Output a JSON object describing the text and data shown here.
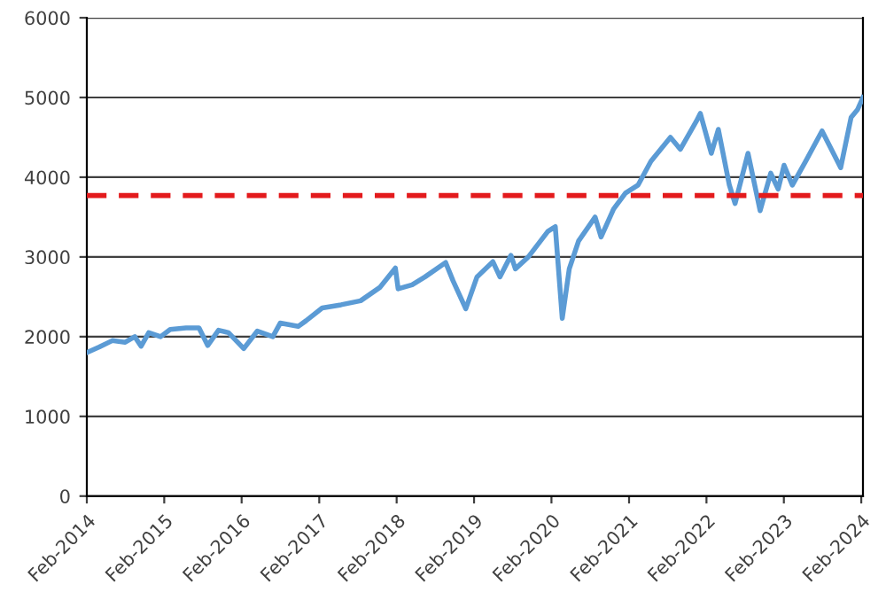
{
  "chart_data": {
    "type": "line",
    "x": [
      "2014-02-01",
      "2014-04-01",
      "2014-06-01",
      "2014-08-01",
      "2014-09-15",
      "2014-10-15",
      "2014-11-20",
      "2015-01-15",
      "2015-03-01",
      "2015-05-15",
      "2015-07-15",
      "2015-08-25",
      "2015-10-15",
      "2015-12-01",
      "2016-02-11",
      "2016-04-15",
      "2016-06-27",
      "2016-08-01",
      "2016-10-25",
      "2016-12-01",
      "2017-02-15",
      "2017-05-15",
      "2017-08-15",
      "2017-11-15",
      "2018-01-26",
      "2018-02-08",
      "2018-04-15",
      "2018-06-15",
      "2018-09-20",
      "2018-10-25",
      "2018-12-24",
      "2019-02-15",
      "2019-05-01",
      "2019-06-03",
      "2019-07-25",
      "2019-08-15",
      "2019-10-15",
      "2020-01-15",
      "2020-02-19",
      "2020-03-23",
      "2020-04-25",
      "2020-06-08",
      "2020-08-25",
      "2020-09-22",
      "2020-11-20",
      "2021-01-15",
      "2021-03-15",
      "2021-05-15",
      "2021-08-15",
      "2021-10-01",
      "2021-12-15",
      "2022-01-03",
      "2022-02-24",
      "2022-03-29",
      "2022-05-20",
      "2022-06-16",
      "2022-08-16",
      "2022-10-12",
      "2022-12-01",
      "2023-01-05",
      "2023-02-02",
      "2023-03-13",
      "2023-05-15",
      "2023-07-31",
      "2023-10-27",
      "2023-12-15",
      "2024-01-15",
      "2024-02-09"
    ],
    "series": [
      {
        "color": "#5b9bd5",
        "values": [
          1800,
          1870,
          1950,
          1930,
          2000,
          1880,
          2050,
          2000,
          2090,
          2110,
          2110,
          1890,
          2080,
          2050,
          1850,
          2070,
          2000,
          2170,
          2130,
          2200,
          2360,
          2400,
          2450,
          2620,
          2860,
          2600,
          2650,
          2750,
          2930,
          2700,
          2350,
          2750,
          2940,
          2750,
          3020,
          2850,
          3000,
          3320,
          3380,
          2230,
          2850,
          3200,
          3500,
          3250,
          3600,
          3800,
          3900,
          4200,
          4500,
          4350,
          4700,
          4800,
          4300,
          4600,
          3900,
          3670,
          4300,
          3580,
          4050,
          3850,
          4150,
          3900,
          4200,
          4580,
          4120,
          4750,
          4850,
          5000
        ]
      }
    ],
    "ref_lines": [
      {
        "axis": "y",
        "value": 3770,
        "color": "#e31a1c",
        "line_style": "dashed"
      }
    ],
    "xlim": [
      "2014-02-01",
      "2024-02-09"
    ],
    "xticks": [
      {
        "value": "2014-02-01",
        "label": "Feb-2014"
      },
      {
        "value": "2015-02-01",
        "label": "Feb-2015"
      },
      {
        "value": "2016-02-01",
        "label": "Feb-2016"
      },
      {
        "value": "2017-02-01",
        "label": "Feb-2017"
      },
      {
        "value": "2018-02-01",
        "label": "Feb-2018"
      },
      {
        "value": "2019-02-01",
        "label": "Feb-2019"
      },
      {
        "value": "2020-02-01",
        "label": "Feb-2020"
      },
      {
        "value": "2021-02-01",
        "label": "Feb-2021"
      },
      {
        "value": "2022-02-01",
        "label": "Feb-2022"
      },
      {
        "value": "2023-02-01",
        "label": "Feb-2023"
      },
      {
        "value": "2024-02-01",
        "label": "Feb-2024"
      }
    ],
    "ylim": [
      0,
      6000
    ],
    "yticks": [
      0,
      1000,
      2000,
      3000,
      4000,
      5000,
      6000
    ],
    "grid": "y",
    "line_style": "solid",
    "marker": "none"
  }
}
